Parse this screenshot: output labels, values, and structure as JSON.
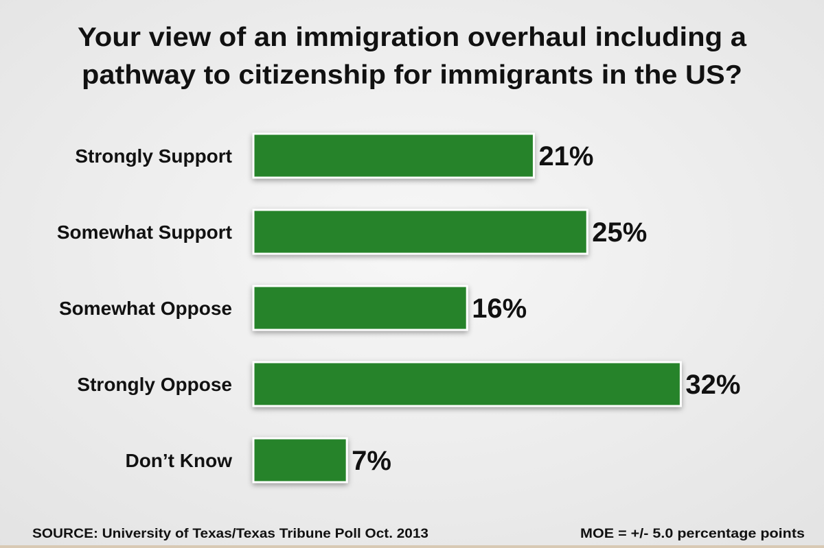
{
  "chart_data": {
    "type": "bar",
    "orientation": "horizontal",
    "title_lines": [
      "Your view of an immigration overhaul including a",
      "pathway to citizenship for immigrants in the US?"
    ],
    "categories": [
      "Strongly Support",
      "Somewhat Support",
      "Somewhat Oppose",
      "Strongly Oppose",
      "Don’t Know"
    ],
    "values": [
      21,
      25,
      16,
      32,
      7
    ],
    "data_labels": [
      "21%",
      "25%",
      "16%",
      "32%",
      "7%"
    ],
    "unit": "%",
    "xlim": [
      0,
      32
    ],
    "grid": false,
    "legend": "none",
    "bar_color": "#28832a",
    "source": "SOURCE: University of Texas/Texas Tribune Poll Oct. 2013",
    "moe": "MOE = +/- 5.0 percentage points"
  }
}
